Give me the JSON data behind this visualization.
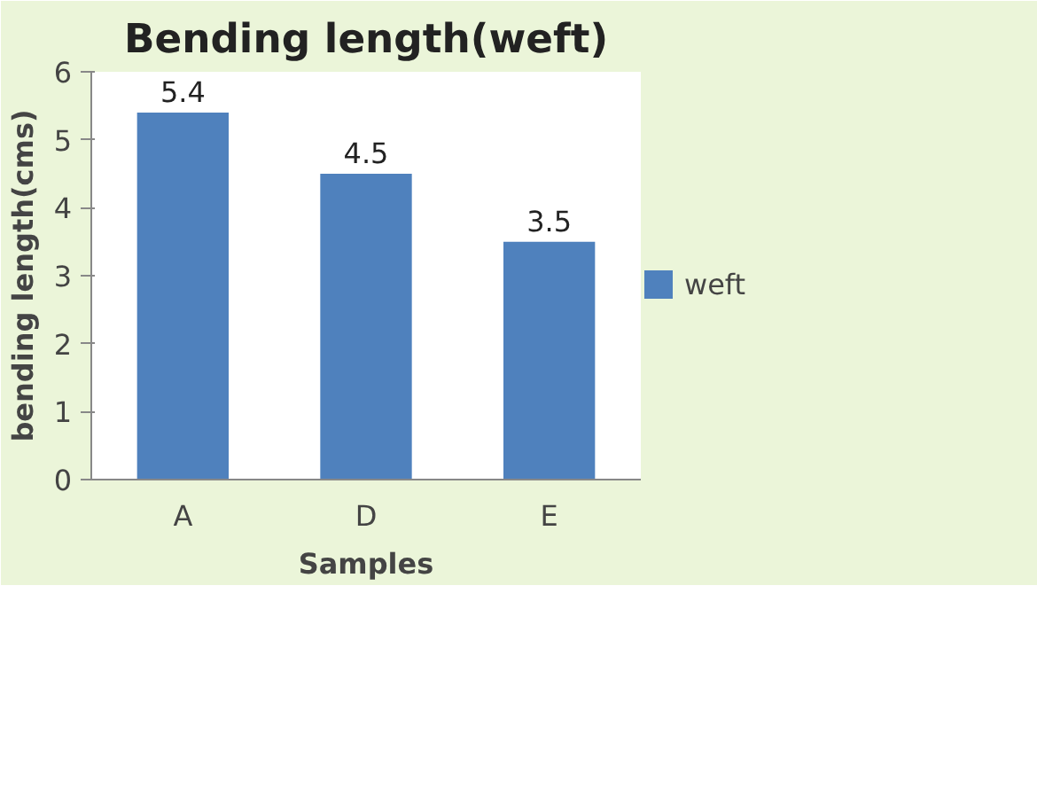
{
  "chart_data": {
    "type": "bar",
    "title": "Bending length(weft)",
    "xlabel": "Samples",
    "ylabel": "bending length(cms)",
    "categories": [
      "A",
      "D",
      "E"
    ],
    "series": [
      {
        "name": "weft",
        "color": "#4f81bd",
        "values": [
          5.4,
          4.5,
          3.5
        ]
      }
    ],
    "ylim": [
      0,
      6
    ],
    "yticks": [
      0,
      1,
      2,
      3,
      4,
      5,
      6
    ],
    "grid": false,
    "legend": "right",
    "data_labels": true
  }
}
